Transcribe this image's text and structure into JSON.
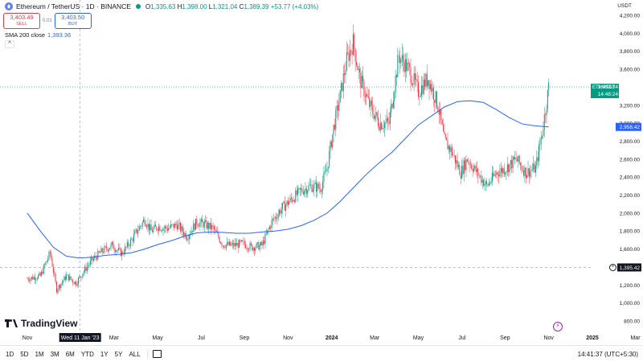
{
  "header": {
    "symbol_title": "Ethereum / TetherUS · 1D · BINANCE",
    "ohlc": {
      "open_label": "O",
      "open": "1,335.63",
      "high_label": "H",
      "high": "1,398.00",
      "low_label": "L",
      "low": "1,321.04",
      "close_label": "C",
      "close": "1,389.39",
      "change": "+53.77 (+4.03%)"
    },
    "sell_price": "3,403.49",
    "sell_label": "SELL",
    "spread": "0.01",
    "buy_price": "3,403.50",
    "buy_label": "BUY",
    "sma_label": "SMA 200 close",
    "sma_value": "1,393.36",
    "collapse_glyph": "^",
    "currency": "USDT"
  },
  "chart_data": {
    "type": "line",
    "title": "",
    "price_axis": [
      {
        "value": 4200,
        "label": "4,200.00"
      },
      {
        "value": 4000,
        "label": "4,000.00"
      },
      {
        "value": 3800,
        "label": "3,800.00"
      },
      {
        "value": 3600,
        "label": "3,600.00"
      },
      {
        "value": 3200,
        "label": "3,200.00"
      },
      {
        "value": 3000,
        "label": "3,000.00"
      },
      {
        "value": 2800,
        "label": "2,800.00"
      },
      {
        "value": 2600,
        "label": "2,600.00"
      },
      {
        "value": 2400,
        "label": "2,400.00"
      },
      {
        "value": 2200,
        "label": "2,200.00"
      },
      {
        "value": 2000,
        "label": "2,000.00"
      },
      {
        "value": 1800,
        "label": "1,800.00"
      },
      {
        "value": 1600,
        "label": "1,600.00"
      },
      {
        "value": 1200,
        "label": "1,200.00"
      },
      {
        "value": 1000,
        "label": "1,000.00"
      },
      {
        "value": 800,
        "label": "800.00"
      }
    ],
    "time_axis": [
      {
        "label": "Nov",
        "t": 0.0
      },
      {
        "label": "Mar",
        "t": 0.133
      },
      {
        "label": "May",
        "t": 0.2
      },
      {
        "label": "Jul",
        "t": 0.267
      },
      {
        "label": "Sep",
        "t": 0.333
      },
      {
        "label": "Nov",
        "t": 0.4
      },
      {
        "label": "2024",
        "t": 0.467
      },
      {
        "label": "Mar",
        "t": 0.533
      },
      {
        "label": "May",
        "t": 0.6
      },
      {
        "label": "Jul",
        "t": 0.667
      },
      {
        "label": "Sep",
        "t": 0.733
      },
      {
        "label": "Nov",
        "t": 0.8
      },
      {
        "label": "2025",
        "t": 0.867
      },
      {
        "label": "Mar",
        "t": 0.933
      }
    ],
    "crosshair": {
      "date_label": "Wed 11 Jan '23",
      "t": 0.081,
      "price_label": "1,395.42",
      "price": 1395.42
    },
    "last_price": {
      "symbol": "ETHUSDT",
      "price_label": "3,403.24",
      "price": 3403.24,
      "countdown": "14:48:24"
    },
    "sma_marker": {
      "price_label": "2,958.42",
      "price": 2958.42
    },
    "price_series": {
      "name": "ETHUSDT",
      "points": [
        [
          0.0,
          1270
        ],
        [
          0.02,
          1300
        ],
        [
          0.035,
          1560
        ],
        [
          0.045,
          1150
        ],
        [
          0.06,
          1300
        ],
        [
          0.075,
          1220
        ],
        [
          0.085,
          1340
        ],
        [
          0.1,
          1480
        ],
        [
          0.115,
          1580
        ],
        [
          0.13,
          1640
        ],
        [
          0.145,
          1550
        ],
        [
          0.16,
          1700
        ],
        [
          0.17,
          1820
        ],
        [
          0.18,
          1930
        ],
        [
          0.19,
          1800
        ],
        [
          0.2,
          1850
        ],
        [
          0.215,
          1830
        ],
        [
          0.23,
          1870
        ],
        [
          0.245,
          1740
        ],
        [
          0.26,
          1900
        ],
        [
          0.27,
          1880
        ],
        [
          0.285,
          1830
        ],
        [
          0.3,
          1650
        ],
        [
          0.315,
          1640
        ],
        [
          0.33,
          1660
        ],
        [
          0.345,
          1620
        ],
        [
          0.36,
          1640
        ],
        [
          0.375,
          1900
        ],
        [
          0.39,
          2050
        ],
        [
          0.405,
          2150
        ],
        [
          0.42,
          2250
        ],
        [
          0.435,
          2300
        ],
        [
          0.45,
          2280
        ],
        [
          0.46,
          2500
        ],
        [
          0.47,
          2950
        ],
        [
          0.48,
          3300
        ],
        [
          0.49,
          3700
        ],
        [
          0.5,
          3900
        ],
        [
          0.51,
          3500
        ],
        [
          0.525,
          3200
        ],
        [
          0.54,
          3000
        ],
        [
          0.555,
          3000
        ],
        [
          0.57,
          3750
        ],
        [
          0.585,
          3600
        ],
        [
          0.6,
          3350
        ],
        [
          0.615,
          3500
        ],
        [
          0.63,
          3200
        ],
        [
          0.64,
          2800
        ],
        [
          0.65,
          2700
        ],
        [
          0.665,
          2450
        ],
        [
          0.675,
          2600
        ],
        [
          0.69,
          2450
        ],
        [
          0.705,
          2300
        ],
        [
          0.72,
          2450
        ],
        [
          0.735,
          2500
        ],
        [
          0.75,
          2600
        ],
        [
          0.765,
          2450
        ],
        [
          0.78,
          2500
        ],
        [
          0.79,
          2900
        ],
        [
          0.8,
          3403
        ]
      ]
    },
    "sma_series": {
      "name": "SMA 200 close",
      "points": [
        [
          0.0,
          2000
        ],
        [
          0.02,
          1800
        ],
        [
          0.04,
          1620
        ],
        [
          0.06,
          1520
        ],
        [
          0.08,
          1500
        ],
        [
          0.1,
          1510
        ],
        [
          0.12,
          1530
        ],
        [
          0.14,
          1540
        ],
        [
          0.16,
          1560
        ],
        [
          0.18,
          1600
        ],
        [
          0.2,
          1650
        ],
        [
          0.22,
          1690
        ],
        [
          0.24,
          1740
        ],
        [
          0.26,
          1780
        ],
        [
          0.28,
          1790
        ],
        [
          0.3,
          1785
        ],
        [
          0.32,
          1775
        ],
        [
          0.34,
          1775
        ],
        [
          0.36,
          1790
        ],
        [
          0.38,
          1800
        ],
        [
          0.4,
          1820
        ],
        [
          0.42,
          1860
        ],
        [
          0.44,
          1920
        ],
        [
          0.46,
          2000
        ],
        [
          0.48,
          2130
        ],
        [
          0.5,
          2280
        ],
        [
          0.52,
          2430
        ],
        [
          0.54,
          2560
        ],
        [
          0.56,
          2680
        ],
        [
          0.58,
          2830
        ],
        [
          0.6,
          2980
        ],
        [
          0.62,
          3080
        ],
        [
          0.64,
          3180
        ],
        [
          0.66,
          3240
        ],
        [
          0.68,
          3250
        ],
        [
          0.7,
          3230
        ],
        [
          0.72,
          3150
        ],
        [
          0.74,
          3060
        ],
        [
          0.76,
          2990
        ],
        [
          0.78,
          2970
        ],
        [
          0.8,
          2958
        ]
      ]
    }
  },
  "logo_text": "TradingView",
  "toolbar": {
    "ranges": [
      "1D",
      "5D",
      "1M",
      "3M",
      "6M",
      "YTD",
      "1Y",
      "5Y",
      "ALL"
    ],
    "clock": "14:41:37 (UTC+5:30)"
  },
  "colors": {
    "up": "#089981",
    "down": "#f23645",
    "sma": "#2962ff",
    "grid": "#f0f3fa"
  }
}
